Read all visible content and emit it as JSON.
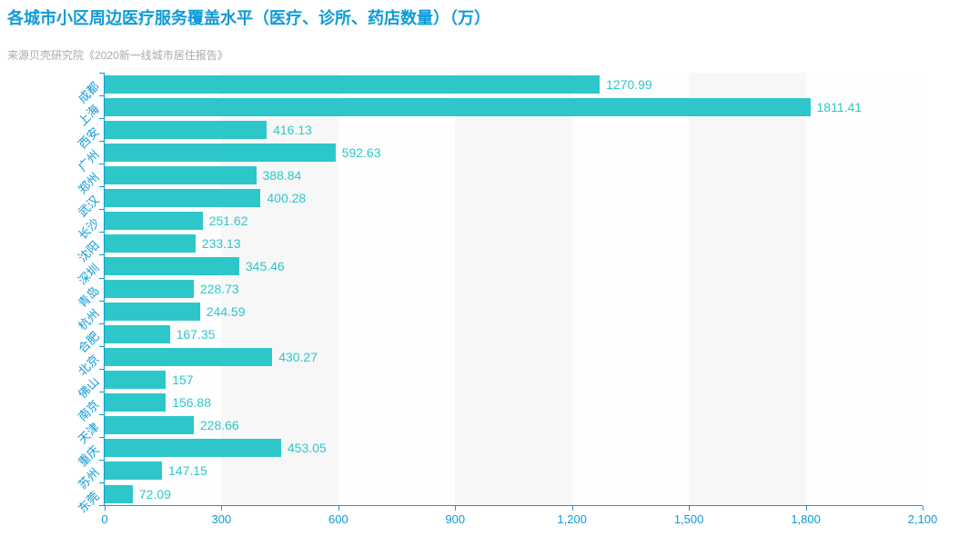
{
  "title": "各城市小区周边医疗服务覆盖水平（医疗、诊所、药店数量）（万）",
  "subtitle": "来源贝壳研究院《2020新一线城市居住报告》",
  "colors": {
    "title_blue": "#0e9ad8",
    "axis_blue": "#0e9ad8",
    "bar_teal": "#2ec7c9",
    "value_label_teal": "#2ec7c9",
    "subtitle_gray": "#aaaaaa",
    "band_light": "#fefefe",
    "band_dark": "#f7f7f7",
    "background": "#ffffff"
  },
  "chart_data": {
    "type": "bar",
    "orientation": "horizontal",
    "title": "各城市小区周边医疗服务覆盖水平（医疗、诊所、药店数量）（万）",
    "subtitle": "来源贝壳研究院《2020新一线城市居住报告》",
    "xlabel": "",
    "ylabel": "",
    "categories": [
      "成都",
      "上海",
      "西安",
      "广州",
      "郑州",
      "武汉",
      "长沙",
      "沈阳",
      "深圳",
      "青岛",
      "杭州",
      "合肥",
      "北京",
      "佛山",
      "南京",
      "天津",
      "重庆",
      "苏州",
      "东莞"
    ],
    "values": [
      1270.99,
      1811.41,
      416.13,
      592.63,
      388.84,
      400.28,
      251.62,
      233.13,
      345.46,
      228.73,
      244.59,
      167.35,
      430.27,
      157,
      156.88,
      228.66,
      453.05,
      147.15,
      72.09
    ],
    "value_labels": [
      "1270.99",
      "1811.41",
      "416.13",
      "592.63",
      "388.84",
      "400.28",
      "251.62",
      "233.13",
      "345.46",
      "228.73",
      "244.59",
      "167.35",
      "430.27",
      "157",
      "156.88",
      "228.66",
      "453.05",
      "147.15",
      "72.09"
    ],
    "xlim": [
      0,
      2100
    ],
    "x_ticks": [
      0,
      300,
      600,
      900,
      1200,
      1500,
      1800,
      2100
    ],
    "x_tick_labels": [
      "0",
      "300",
      "600",
      "900",
      "1,200",
      "1,500",
      "1,800",
      "2,100"
    ],
    "grid": false,
    "split_area_alternating": true,
    "legend": "none",
    "bar_label_position": "right-of-bar",
    "category_label_rotation_deg": 45
  }
}
